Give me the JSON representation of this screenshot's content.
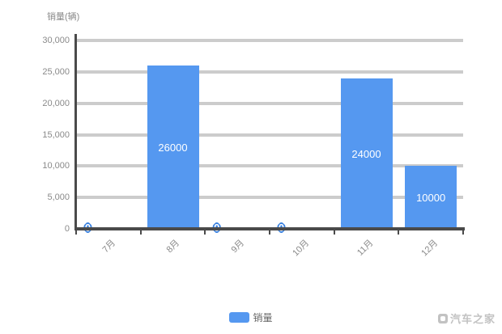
{
  "chart_data": {
    "type": "bar",
    "title": "",
    "y_axis_title": "销量(辆)",
    "categories": [
      "7月",
      "8月",
      "9月",
      "10月",
      "11月",
      "12月"
    ],
    "series": [
      {
        "name": "销量",
        "values": [
          0,
          26000,
          0,
          0,
          24000,
          10000
        ]
      }
    ],
    "data_labels": [
      "0",
      "26000",
      "0",
      "0",
      "24000",
      "10000"
    ],
    "ylim": [
      0,
      30000
    ],
    "y_tick_step": 5000,
    "y_tick_labels": [
      "0",
      "5,000",
      "10,000",
      "15,000",
      "20,000",
      "25,000",
      "30,000"
    ],
    "grid": true,
    "legend_position": "bottom-center",
    "bar_color": "#5598f0",
    "gridline_color": "#cccccc",
    "axis_color": "#4a4a4a",
    "label_color": "#8a8a8a",
    "bar_value_label_color": "#ffffff",
    "zero_label_outline_color": "#3b82e0"
  },
  "legend": {
    "label": "销量",
    "swatch_color": "#5598f0"
  },
  "watermark": {
    "text": "汽车之家"
  }
}
